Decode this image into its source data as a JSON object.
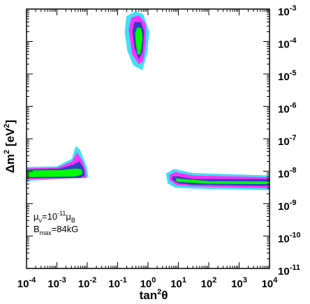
{
  "chart_data": {
    "type": "contour",
    "xlabel": {
      "base": "tan",
      "sup": "2",
      "tail": "θ"
    },
    "ylabel": {
      "base": "Δm",
      "sup": "2",
      "tail": " [eV",
      "sup2": "2",
      "end": "]"
    },
    "x_scale": "log",
    "y_scale": "log",
    "xlim": [
      0.0001,
      10000.0
    ],
    "ylim": [
      1e-11,
      0.001
    ],
    "x_ticks": [
      {
        "mant": "10",
        "exp": "-4"
      },
      {
        "mant": "10",
        "exp": "-3"
      },
      {
        "mant": "10",
        "exp": "-2"
      },
      {
        "mant": "10",
        "exp": "-1"
      },
      {
        "mant": "10",
        "exp": "0"
      },
      {
        "mant": "10",
        "exp": "1"
      },
      {
        "mant": "10",
        "exp": "2"
      },
      {
        "mant": "10",
        "exp": "3"
      },
      {
        "mant": "10",
        "exp": "4"
      }
    ],
    "y_ticks": [
      {
        "mant": "10",
        "exp": "-3"
      },
      {
        "mant": "10",
        "exp": "-4"
      },
      {
        "mant": "10",
        "exp": "-5"
      },
      {
        "mant": "10",
        "exp": "-6"
      },
      {
        "mant": "10",
        "exp": "-7"
      },
      {
        "mant": "10",
        "exp": "-8"
      },
      {
        "mant": "10",
        "exp": "-9"
      },
      {
        "mant": "10",
        "exp": "-10"
      },
      {
        "mant": "10",
        "exp": "-11"
      }
    ],
    "annotation": {
      "line1": {
        "a": "μ",
        "a_sub": "ν",
        "b": "=10",
        "b_sup": "-11",
        "c": "μ",
        "c_sub": "B"
      },
      "line2": {
        "a": "B",
        "a_sub": "max",
        "b": "=84kG"
      }
    },
    "levels": [
      {
        "name": "",
        "color": "#40e0f0"
      },
      {
        "name": "",
        "color": "#ff30ff"
      },
      {
        "name": "",
        "color": "#3040c0"
      },
      {
        "name": "",
        "color": "#00ff00"
      }
    ],
    "regions": [
      {
        "id": "small-mixing",
        "levels": [
          [
            [
              0.0001,
              1.35e-08
            ],
            [
              0.001,
              1.4e-08
            ],
            [
              0.0031,
              2.4e-08
            ],
            [
              0.0042,
              6e-08
            ],
            [
              0.0058,
              4.6e-08
            ],
            [
              0.0095,
              1.4e-08
            ],
            [
              0.011,
              6.5e-09
            ],
            [
              0.0001,
              5e-09
            ]
          ],
          [
            [
              0.0001,
              1.22e-08
            ],
            [
              0.0011,
              1.3e-08
            ],
            [
              0.0032,
              2e-08
            ],
            [
              0.0046,
              3.8e-08
            ],
            [
              0.007,
              2e-08
            ],
            [
              0.009,
              1e-08
            ],
            [
              0.0093,
              6.2e-09
            ],
            [
              0.0001,
              5.6e-09
            ]
          ],
          [
            [
              0.0001,
              1.12e-08
            ],
            [
              0.0013,
              1.2e-08
            ],
            [
              0.0035,
              1.6e-08
            ],
            [
              0.0055,
              2e-08
            ],
            [
              0.0075,
              1.3e-08
            ],
            [
              0.0083,
              7.5e-09
            ],
            [
              0.006,
              6.2e-09
            ],
            [
              0.0001,
              6.2e-09
            ]
          ],
          [
            [
              0.0001,
              1.05e-08
            ],
            [
              0.0015,
              1.08e-08
            ],
            [
              0.004,
              1.2e-08
            ],
            [
              0.0065,
              1.15e-08
            ],
            [
              0.007,
              8.2e-09
            ],
            [
              0.004,
              6.8e-09
            ],
            [
              0.0001,
              6.6e-09
            ]
          ]
        ]
      },
      {
        "id": "large-mixing",
        "levels": [
          [
            [
              0.17,
              0.0002
            ],
            [
              0.195,
              0.0006
            ],
            [
              0.38,
              0.00085
            ],
            [
              0.7,
              0.0007
            ],
            [
              1.1,
              0.0002
            ],
            [
              0.95,
              4.5e-05
            ],
            [
              0.65,
              1.3e-05
            ],
            [
              0.33,
              1.8e-05
            ],
            [
              0.21,
              5e-05
            ]
          ],
          [
            [
              0.23,
              0.00022
            ],
            [
              0.28,
              0.00055
            ],
            [
              0.5,
              0.00063
            ],
            [
              0.85,
              0.00035
            ],
            [
              0.85,
              0.0001
            ],
            [
              0.7,
              2.5e-05
            ],
            [
              0.5,
              2e-05
            ],
            [
              0.3,
              4e-05
            ]
          ],
          [
            [
              0.3,
              0.0002
            ],
            [
              0.36,
              0.0004
            ],
            [
              0.58,
              0.0004
            ],
            [
              0.75,
              0.0002
            ],
            [
              0.67,
              5e-05
            ],
            [
              0.5,
              2.8e-05
            ],
            [
              0.36,
              6e-05
            ]
          ],
          [
            [
              0.38,
              0.00018
            ],
            [
              0.45,
              0.00028
            ],
            [
              0.6,
              0.00025
            ],
            [
              0.66,
              0.00013
            ],
            [
              0.55,
              4e-05
            ],
            [
              0.45,
              4e-05
            ],
            [
              0.4,
              9e-05
            ]
          ]
        ]
      },
      {
        "id": "high-tan",
        "levels": [
          [
            [
              3.9,
              8.4e-09
            ],
            [
              7,
              1.18e-08
            ],
            [
              30,
              8.8e-09
            ],
            [
              10000.0,
              7.4e-09
            ],
            [
              10000.0,
              2.6e-09
            ],
            [
              30,
              2.9e-09
            ],
            [
              8,
              3.1e-09
            ],
            [
              4.4,
              4.2e-09
            ]
          ],
          [
            [
              5,
              7.6e-09
            ],
            [
              8,
              9.4e-09
            ],
            [
              30,
              7.4e-09
            ],
            [
              10000.0,
              6.5e-09
            ],
            [
              10000.0,
              3e-09
            ],
            [
              30,
              3.4e-09
            ],
            [
              9,
              3.7e-09
            ],
            [
              5.2,
              5.2e-09
            ]
          ],
          [
            [
              6.3,
              6.9e-09
            ],
            [
              10,
              6.9e-09
            ],
            [
              30,
              5.8e-09
            ],
            [
              10000.0,
              5.7e-09
            ],
            [
              10000.0,
              3.5e-09
            ],
            [
              30,
              3.8e-09
            ],
            [
              10,
              4.2e-09
            ],
            [
              6.3,
              5.5e-09
            ]
          ],
          [
            [
              8,
              6e-09
            ],
            [
              20,
              5.6e-09
            ],
            [
              100,
              4.9e-09
            ],
            [
              10000.0,
              4.8e-09
            ],
            [
              10000.0,
              4e-09
            ],
            [
              100,
              4.1e-09
            ],
            [
              20,
              4.5e-09
            ],
            [
              9,
              4.7e-09
            ]
          ]
        ]
      }
    ]
  }
}
